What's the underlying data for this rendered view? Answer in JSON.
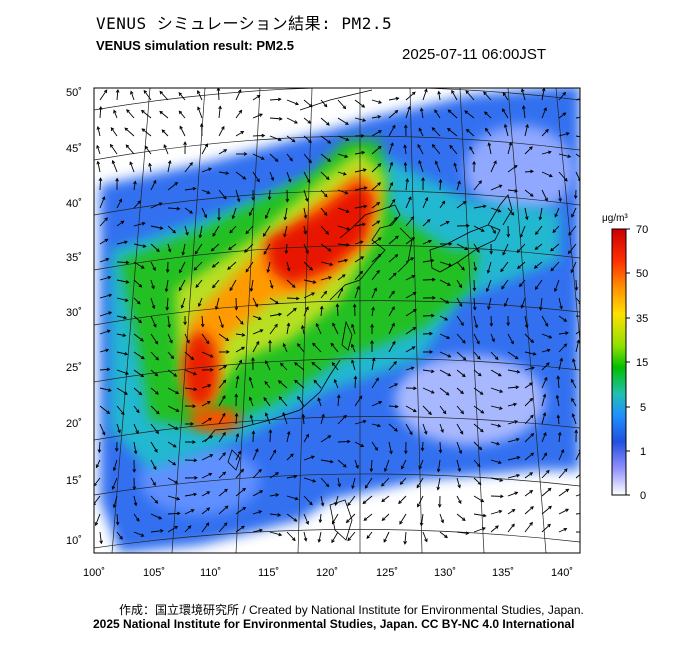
{
  "header": {
    "title_jp": "VENUS シミュレーション結果: PM2.5",
    "title_en": "VENUS simulation result: PM2.5",
    "timestamp": "2025-07-11 06:00JST"
  },
  "map": {
    "lat_labels": [
      "50˚",
      "45˚",
      "40˚",
      "35˚",
      "30˚",
      "25˚",
      "20˚",
      "15˚",
      "10˚"
    ],
    "lon_labels": [
      "100˚",
      "105˚",
      "110˚",
      "115˚",
      "120˚",
      "125˚",
      "130˚",
      "135˚",
      "140˚"
    ],
    "field": "PM2.5 concentration with wind vectors"
  },
  "colorbar": {
    "unit": "μg/m³",
    "ticks": [
      "70",
      "50",
      "35",
      "15",
      "5",
      "1",
      "0"
    ],
    "colors": [
      "#cc0000",
      "#ff4000",
      "#ffa000",
      "#ffff00",
      "#80e000",
      "#00c000",
      "#20c0c0",
      "#2080ff",
      "#2040d0",
      "#c8c8ff",
      "#ffffff"
    ]
  },
  "footer": {
    "credit_line1": "作成：国立環境研究所 / Created by National Institute for Environmental Studies, Japan.",
    "credit_line2": "2025 National Institute for Environmental Studies, Japan. CC BY-NC 4.0 International"
  }
}
